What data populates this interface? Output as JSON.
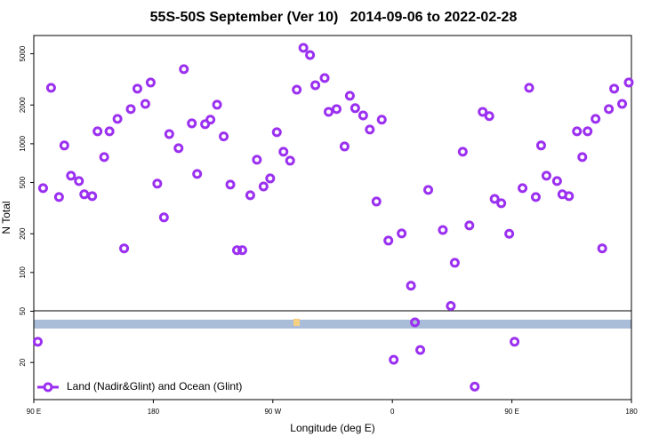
{
  "chart_data": {
    "type": "scatter",
    "title": "55S-50S September (Ver 10)   2014-09-06 to 2022-02-28",
    "x_label": "Longitude (deg E)",
    "y_label": "N Total",
    "log_y": true,
    "legend": "lower left",
    "xlim": [
      90,
      540
    ],
    "ylim": [
      10.3,
      6930
    ],
    "xticks": [
      {
        "value": 90,
        "label": "90 E"
      },
      180,
      {
        "value": 270,
        "label": "90 W"
      },
      {
        "value": 360,
        "label": "0"
      },
      {
        "value": 450,
        "label": "90 E"
      },
      180
    ],
    "yticks": [
      20,
      50,
      100,
      200,
      500,
      1000,
      2000,
      5000
    ],
    "series": [
      {
        "name": "Land (Nadir&Glint) and Ocean (Glint)",
        "color": "#9b30f0",
        "x": [
          93,
          97,
          103,
          109,
          113,
          118,
          124,
          128,
          134,
          138,
          143,
          147,
          153,
          158,
          163,
          168,
          174,
          178,
          183,
          188,
          192,
          199,
          203,
          209,
          213,
          219,
          223,
          228,
          233,
          238,
          243,
          247,
          253,
          258,
          263,
          268,
          273,
          278,
          283,
          288,
          293,
          298,
          302,
          309,
          312,
          318,
          324,
          328,
          332,
          338,
          343,
          348,
          352,
          357,
          361,
          367,
          374,
          377,
          381,
          387,
          398,
          404,
          407,
          413,
          418,
          422,
          428,
          433,
          437,
          442,
          448,
          452,
          458,
          463,
          468,
          472,
          476,
          484,
          488,
          493,
          499,
          503,
          507,
          513,
          518,
          523,
          527,
          533,
          538
        ],
        "y": [
          29,
          452,
          2720,
          386,
          970,
          565,
          513,
          405,
          392,
          1250,
          788,
          1250,
          1560,
          154,
          1860,
          2680,
          2040,
          2990,
          490,
          268,
          1190,
          924,
          3800,
          1440,
          583,
          1420,
          1540,
          2010,
          1140,
          482,
          149,
          149,
          398,
          751,
          466,
          538,
          1230,
          867,
          739,
          2630,
          5560,
          4890,
          2850,
          3240,
          1770,
          1860,
          953,
          2360,
          1890,
          1660,
          1290,
          356,
          1540,
          177,
          21,
          201,
          79,
          41,
          25,
          438,
          214,
          55,
          119,
          867,
          232,
          13,
          1770,
          1640,
          373,
          345,
          200,
          29,
          452,
          2720,
          386,
          970,
          565,
          513,
          405,
          392,
          1250,
          788,
          1250,
          1560,
          154,
          1860,
          2680,
          2040,
          2990
        ]
      }
    ]
  }
}
